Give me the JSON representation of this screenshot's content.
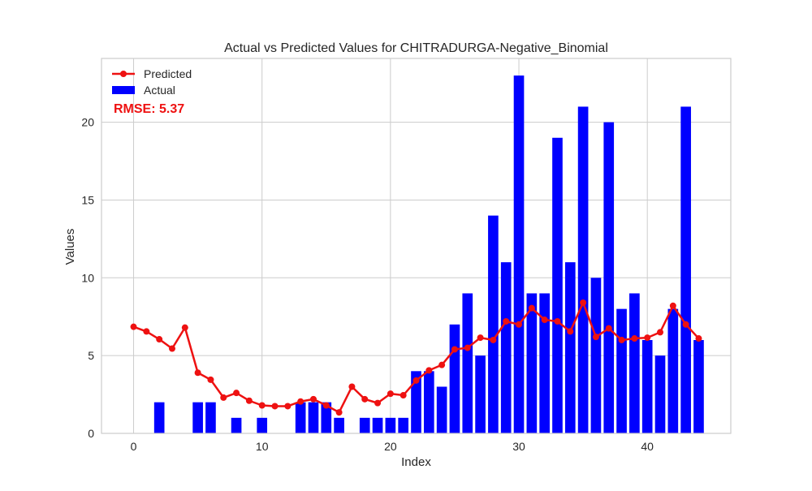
{
  "chart_data": {
    "type": "bar+line",
    "title": "Actual vs Predicted Values for CHITRADURGA-Negative_Binomial",
    "xlabel": "Index",
    "ylabel": "Values",
    "xlim": [
      -2.5,
      46.5
    ],
    "ylim": [
      0,
      24.1
    ],
    "xticks": [
      0,
      10,
      20,
      30,
      40
    ],
    "yticks": [
      0,
      5,
      10,
      15,
      20
    ],
    "grid": true,
    "legend_position": "top-left",
    "annotation": "RMSE: 5.37",
    "x": [
      0,
      1,
      2,
      3,
      4,
      5,
      6,
      7,
      8,
      9,
      10,
      11,
      12,
      13,
      14,
      15,
      16,
      17,
      18,
      19,
      20,
      21,
      22,
      23,
      24,
      25,
      26,
      27,
      28,
      29,
      30,
      31,
      32,
      33,
      34,
      35,
      36,
      37,
      38,
      39,
      40,
      41,
      42,
      43,
      44
    ],
    "series": [
      {
        "name": "Predicted",
        "kind": "line",
        "color": "#ee1111",
        "values": [
          6.85,
          6.55,
          6.05,
          5.45,
          6.8,
          3.9,
          3.45,
          2.3,
          2.6,
          2.1,
          1.8,
          1.75,
          1.75,
          2.05,
          2.2,
          1.8,
          1.35,
          3.0,
          2.2,
          1.95,
          2.55,
          2.45,
          3.4,
          4.05,
          4.4,
          5.4,
          5.5,
          6.15,
          6.0,
          7.2,
          7.0,
          8.05,
          7.3,
          7.2,
          6.55,
          8.4,
          6.2,
          6.75,
          6.0,
          6.1,
          6.15,
          6.5,
          8.2,
          7.0,
          6.1
        ]
      },
      {
        "name": "Actual",
        "kind": "bar",
        "color": "#0000ff",
        "values": [
          0,
          0,
          2,
          0,
          0,
          2,
          2,
          0,
          1,
          0,
          1,
          0,
          0,
          2,
          2,
          2,
          1,
          0,
          1,
          1,
          1,
          1,
          4,
          4,
          3,
          7,
          9,
          5,
          14,
          11,
          23,
          9,
          9,
          19,
          11,
          21,
          10,
          20,
          8,
          9,
          6,
          5,
          8,
          21,
          6
        ]
      }
    ]
  }
}
